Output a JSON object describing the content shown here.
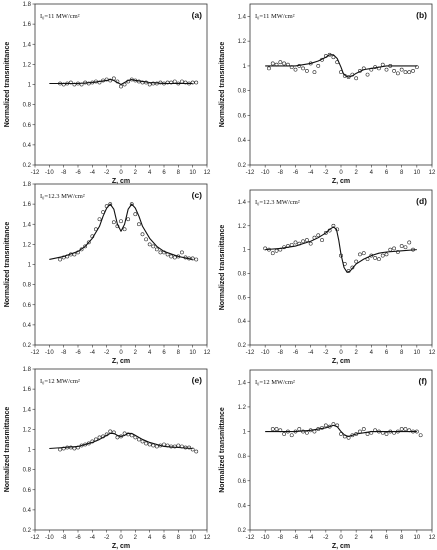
{
  "chart_data": [
    {
      "type": "scatter",
      "panel_label": "(a)",
      "intensity": "I₀=11 MW/cm²",
      "xlabel": "Z, cm",
      "ylabel": "Normalized transmittance",
      "xlim": [
        -12,
        12
      ],
      "ylim": [
        0.2,
        1.8
      ],
      "xticks": [
        -12,
        -10,
        -8,
        -6,
        -4,
        -2,
        0,
        2,
        4,
        6,
        8,
        10,
        12
      ],
      "yticks": [
        0.2,
        0.4,
        0.6,
        0.8,
        1,
        1.2,
        1.4,
        1.6,
        1.8
      ],
      "xticklabels": [
        "-12",
        "-10",
        "-8",
        "-6",
        "-4",
        "-2",
        "0",
        "2",
        "4",
        "6",
        "8",
        "10",
        "12"
      ],
      "yticklabels": [
        "0.2",
        "0.4",
        "0.6",
        "0.8",
        "1",
        "1.2",
        "1.4",
        "1.6",
        "1.8"
      ],
      "series": [
        {
          "kind": "points",
          "x": [
            -8.5,
            -8,
            -7.5,
            -7,
            -6.5,
            -6,
            -5.5,
            -5,
            -4.5,
            -4,
            -3.5,
            -3,
            -2.5,
            -2,
            -1.5,
            -1,
            -0.5,
            0,
            0.5,
            1,
            1.5,
            2,
            2.5,
            3,
            3.5,
            4,
            4.5,
            5,
            5.5,
            6,
            6.5,
            7,
            7.5,
            8,
            8.5,
            9,
            9.5,
            10,
            10.5
          ],
          "y": [
            1.01,
            1.0,
            1.01,
            1.02,
            1.0,
            1.01,
            1.0,
            1.02,
            1.01,
            1.02,
            1.03,
            1.02,
            1.04,
            1.05,
            1.04,
            1.06,
            1.03,
            0.98,
            1.0,
            1.03,
            1.05,
            1.04,
            1.03,
            1.02,
            1.02,
            1.0,
            1.01,
            1.01,
            1.02,
            1.01,
            1.02,
            1.02,
            1.03,
            1.01,
            1.03,
            1.02,
            1.01,
            1.02,
            1.02
          ]
        },
        {
          "kind": "line",
          "x": [
            -10,
            -8,
            -6,
            -4,
            -3,
            -2,
            -1.5,
            -1,
            -0.5,
            0,
            0.5,
            1,
            1.5,
            2,
            3,
            4,
            6,
            8,
            10
          ],
          "y": [
            1.01,
            1.01,
            1.01,
            1.02,
            1.03,
            1.04,
            1.05,
            1.04,
            1.02,
            1.0,
            1.02,
            1.04,
            1.05,
            1.04,
            1.03,
            1.02,
            1.01,
            1.01,
            1.01
          ]
        }
      ]
    },
    {
      "type": "scatter",
      "panel_label": "(b)",
      "intensity": "I₀=11 MW/cm²",
      "xlabel": "Z, cm",
      "ylabel": "Normalized transmittance",
      "xlim": [
        -12,
        12
      ],
      "ylim": [
        0.2,
        1.5
      ],
      "xticks": [
        -12,
        -10,
        -8,
        -6,
        -4,
        -2,
        0,
        2,
        4,
        6,
        8,
        10,
        12
      ],
      "yticks": [
        0.2,
        0.4,
        0.6,
        0.8,
        1,
        1.2,
        1.4
      ],
      "xticklabels": [
        "-12",
        "-10",
        "-8",
        "-6",
        "-4",
        "-2",
        "0",
        "2",
        "4",
        "6",
        "8",
        "10",
        "12"
      ],
      "yticklabels": [
        "0.2",
        "0.4",
        "0.6",
        "0.8",
        "1",
        "1.2",
        "1.4"
      ],
      "series": [
        {
          "kind": "points",
          "x": [
            -9.5,
            -9,
            -8.5,
            -8,
            -7.5,
            -7,
            -6.5,
            -6,
            -5.5,
            -5,
            -4.5,
            -4,
            -3.5,
            -3,
            -2.5,
            -2,
            -1.5,
            -1,
            -0.5,
            0,
            0.5,
            1,
            1.5,
            2,
            2.5,
            3,
            3.5,
            4,
            4.5,
            5,
            5.5,
            6,
            6.5,
            7,
            7.5,
            8,
            8.5,
            9,
            9.5,
            10
          ],
          "y": [
            0.98,
            1.02,
            1.01,
            1.03,
            1.02,
            1.01,
            0.99,
            0.97,
            1.0,
            0.98,
            0.96,
            1.02,
            0.95,
            1.0,
            1.05,
            1.08,
            1.09,
            1.07,
            1.03,
            0.95,
            0.92,
            0.91,
            0.93,
            0.9,
            0.96,
            0.98,
            0.93,
            0.97,
            0.99,
            0.98,
            1.01,
            0.97,
            1.0,
            0.96,
            0.94,
            0.97,
            0.95,
            0.95,
            0.96,
            0.99
          ]
        },
        {
          "kind": "line",
          "x": [
            -10,
            -8,
            -6,
            -5,
            -4,
            -3,
            -2,
            -1.5,
            -1,
            -0.5,
            0,
            0.3,
            0.6,
            1,
            1.5,
            2,
            3,
            4,
            5,
            6,
            8,
            10
          ],
          "y": [
            1.0,
            1.0,
            1.0,
            1.01,
            1.02,
            1.04,
            1.07,
            1.09,
            1.09,
            1.06,
            0.99,
            0.94,
            0.92,
            0.91,
            0.92,
            0.94,
            0.97,
            0.98,
            0.99,
            1.0,
            1.0,
            1.0
          ]
        }
      ]
    },
    {
      "type": "scatter",
      "panel_label": "(c)",
      "intensity": "I₀=12.3 MW/cm²",
      "xlabel": "Z, cm",
      "ylabel": "Normalized transmittance",
      "xlim": [
        -12,
        12
      ],
      "ylim": [
        0.2,
        1.8
      ],
      "xticks": [
        -12,
        -10,
        -8,
        -6,
        -4,
        -2,
        0,
        2,
        4,
        6,
        8,
        10,
        12
      ],
      "yticks": [
        0.2,
        0.4,
        0.6,
        0.8,
        1,
        1.2,
        1.4,
        1.6,
        1.8
      ],
      "xticklabels": [
        "-12",
        "-10",
        "-8",
        "-6",
        "-4",
        "-2",
        "0",
        "2",
        "4",
        "6",
        "8",
        "10",
        "12"
      ],
      "yticklabels": [
        "0.2",
        "0.4",
        "0.6",
        "0.8",
        "1",
        "1.2",
        "1.4",
        "1.6",
        "1.8"
      ],
      "series": [
        {
          "kind": "points",
          "x": [
            -8.5,
            -8,
            -7.5,
            -7,
            -6.5,
            -6,
            -5.5,
            -5,
            -4.5,
            -4,
            -3.5,
            -3,
            -2.5,
            -2,
            -1.5,
            -1,
            -0.5,
            0,
            0.5,
            1,
            1.5,
            2,
            2.5,
            3,
            3.5,
            4,
            4.5,
            5,
            5.5,
            6,
            6.5,
            7,
            7.5,
            8,
            8.5,
            9,
            9.5,
            10,
            10.5
          ],
          "y": [
            1.05,
            1.07,
            1.08,
            1.1,
            1.1,
            1.12,
            1.15,
            1.18,
            1.22,
            1.28,
            1.35,
            1.45,
            1.52,
            1.58,
            1.6,
            1.42,
            1.38,
            1.43,
            1.35,
            1.45,
            1.6,
            1.5,
            1.4,
            1.3,
            1.25,
            1.2,
            1.18,
            1.15,
            1.12,
            1.12,
            1.1,
            1.08,
            1.07,
            1.08,
            1.12,
            1.07,
            1.06,
            1.06,
            1.05
          ]
        },
        {
          "kind": "line",
          "x": [
            -10,
            -8,
            -6,
            -5,
            -4,
            -3,
            -2.5,
            -2,
            -1.5,
            -1,
            -0.5,
            0,
            0.5,
            1,
            1.5,
            2,
            2.5,
            3,
            4,
            5,
            6,
            8,
            10
          ],
          "y": [
            1.05,
            1.08,
            1.13,
            1.18,
            1.26,
            1.38,
            1.48,
            1.56,
            1.6,
            1.55,
            1.4,
            1.33,
            1.4,
            1.55,
            1.6,
            1.56,
            1.48,
            1.38,
            1.26,
            1.18,
            1.13,
            1.08,
            1.05
          ]
        }
      ]
    },
    {
      "type": "scatter",
      "panel_label": "(d)",
      "intensity": "I₀=12.3 MW/cm²",
      "xlabel": "Z, cm",
      "ylabel": "Normalized transmittance",
      "xlim": [
        -12,
        12
      ],
      "ylim": [
        0.2,
        1.5
      ],
      "xticks": [
        -12,
        -10,
        -8,
        -6,
        -4,
        -2,
        0,
        2,
        4,
        6,
        8,
        10,
        12
      ],
      "yticks": [
        0.2,
        0.4,
        0.6,
        0.8,
        1,
        1.2,
        1.4
      ],
      "xticklabels": [
        "-12",
        "-10",
        "-8",
        "-6",
        "-4",
        "-2",
        "0",
        "2",
        "4",
        "6",
        "8",
        "10",
        "12"
      ],
      "yticklabels": [
        "0.2",
        "0.4",
        "0.6",
        "0.8",
        "1",
        "1.2",
        "1.4"
      ],
      "series": [
        {
          "kind": "points",
          "x": [
            -10,
            -9.5,
            -9,
            -8.5,
            -8,
            -7.5,
            -7,
            -6.5,
            -6,
            -5.5,
            -5,
            -4.5,
            -4,
            -3.5,
            -3,
            -2.5,
            -2,
            -1.5,
            -1,
            -0.5,
            0,
            0.5,
            1,
            1.5,
            2,
            2.5,
            3,
            3.5,
            4,
            4.5,
            5,
            5.5,
            6,
            6.5,
            7,
            7.5,
            8,
            8.5,
            9,
            9.5
          ],
          "y": [
            1.01,
            1.0,
            0.97,
            0.99,
            1.0,
            1.02,
            1.03,
            1.04,
            1.06,
            1.05,
            1.07,
            1.08,
            1.05,
            1.1,
            1.12,
            1.08,
            1.14,
            1.16,
            1.2,
            1.17,
            0.95,
            0.88,
            0.82,
            0.85,
            0.9,
            0.96,
            0.97,
            0.92,
            0.95,
            0.93,
            0.92,
            0.95,
            0.96,
            1.0,
            1.01,
            0.98,
            1.03,
            1.02,
            1.06,
            1.0
          ]
        },
        {
          "kind": "line",
          "x": [
            -10,
            -8,
            -6,
            -5,
            -4,
            -3,
            -2,
            -1.5,
            -1,
            -0.6,
            -0.3,
            0,
            0.4,
            0.8,
            1.2,
            1.6,
            2,
            3,
            4,
            5,
            6,
            8,
            10
          ],
          "y": [
            1.0,
            1.01,
            1.03,
            1.05,
            1.07,
            1.1,
            1.14,
            1.17,
            1.19,
            1.17,
            1.08,
            0.96,
            0.85,
            0.81,
            0.82,
            0.85,
            0.88,
            0.92,
            0.95,
            0.97,
            0.98,
            0.99,
            1.0
          ]
        }
      ]
    },
    {
      "type": "scatter",
      "panel_label": "(e)",
      "intensity": "I₀=12 MW/cm²",
      "xlabel": "Z, cm",
      "ylabel": "Normalized transmittance",
      "xlim": [
        -12,
        12
      ],
      "ylim": [
        0.2,
        1.8
      ],
      "xticks": [
        -12,
        -10,
        -8,
        -6,
        -4,
        -2,
        0,
        2,
        4,
        6,
        8,
        10,
        12
      ],
      "yticks": [
        0.2,
        0.4,
        0.6,
        0.8,
        1,
        1.2,
        1.4,
        1.6,
        1.8
      ],
      "xticklabels": [
        "-12",
        "-10",
        "-8",
        "-6",
        "-4",
        "-2",
        "0",
        "2",
        "4",
        "6",
        "8",
        "10",
        "12"
      ],
      "yticklabels": [
        "0.2",
        "0.4",
        "0.6",
        "0.8",
        "1",
        "1.2",
        "1.4",
        "1.6",
        "1.8"
      ],
      "series": [
        {
          "kind": "points",
          "x": [
            -8.5,
            -8,
            -7.5,
            -7,
            -6.5,
            -6,
            -5.5,
            -5,
            -4.5,
            -4,
            -3.5,
            -3,
            -2.5,
            -2,
            -1.5,
            -1,
            -0.5,
            0,
            0.5,
            1,
            1.5,
            2,
            2.5,
            3,
            3.5,
            4,
            4.5,
            5,
            5.5,
            6,
            6.5,
            7,
            7.5,
            8,
            8.5,
            9,
            9.5,
            10,
            10.5
          ],
          "y": [
            1.0,
            1.01,
            1.02,
            1.02,
            1.01,
            1.02,
            1.04,
            1.05,
            1.06,
            1.08,
            1.1,
            1.12,
            1.13,
            1.15,
            1.18,
            1.17,
            1.12,
            1.13,
            1.16,
            1.15,
            1.14,
            1.12,
            1.1,
            1.08,
            1.06,
            1.05,
            1.04,
            1.03,
            1.04,
            1.05,
            1.04,
            1.03,
            1.03,
            1.04,
            1.03,
            1.02,
            1.02,
            1.0,
            0.98
          ]
        },
        {
          "kind": "line",
          "x": [
            -10,
            -8,
            -6,
            -4,
            -3,
            -2,
            -1.5,
            -1,
            -0.5,
            0,
            0.5,
            1,
            1.5,
            2,
            3,
            4,
            6,
            8,
            10
          ],
          "y": [
            1.01,
            1.02,
            1.03,
            1.07,
            1.1,
            1.14,
            1.16,
            1.16,
            1.14,
            1.13,
            1.14,
            1.16,
            1.16,
            1.14,
            1.1,
            1.07,
            1.03,
            1.02,
            1.01
          ]
        }
      ]
    },
    {
      "type": "scatter",
      "panel_label": "(f)",
      "intensity": "I₀=12 MW/cm²",
      "xlabel": "Z, cm",
      "ylabel": "Normalized transmittance",
      "xlim": [
        -12,
        12
      ],
      "ylim": [
        0.2,
        1.5
      ],
      "xticks": [
        -12,
        -10,
        -8,
        -6,
        -4,
        -2,
        0,
        2,
        4,
        6,
        8,
        10,
        12
      ],
      "yticks": [
        0.2,
        0.4,
        0.6,
        0.8,
        1,
        1.2,
        1.4
      ],
      "xticklabels": [
        "-12",
        "-10",
        "-8",
        "-6",
        "-4",
        "-2",
        "0",
        "2",
        "4",
        "6",
        "8",
        "10",
        "12"
      ],
      "yticklabels": [
        "0.2",
        "0.4",
        "0.6",
        "0.8",
        "1",
        "1.2",
        "1.4"
      ],
      "series": [
        {
          "kind": "points",
          "x": [
            -9,
            -8.5,
            -8,
            -7.5,
            -7,
            -6.5,
            -6,
            -5.5,
            -5,
            -4.5,
            -4,
            -3.5,
            -3,
            -2.5,
            -2,
            -1.5,
            -1,
            -0.5,
            0,
            0.5,
            1,
            1.5,
            2,
            2.5,
            3,
            3.5,
            4,
            4.5,
            5,
            5.5,
            6,
            6.5,
            7,
            7.5,
            8,
            8.5,
            9,
            9.5,
            10,
            10.5
          ],
          "y": [
            1.02,
            1.02,
            1.01,
            0.98,
            1.0,
            0.97,
            1.0,
            1.02,
            1.0,
            0.99,
            1.01,
            1.0,
            1.02,
            1.03,
            1.05,
            1.04,
            1.06,
            1.05,
            0.98,
            0.96,
            0.95,
            0.97,
            0.98,
            1.0,
            1.02,
            0.98,
            0.99,
            1.01,
            1.0,
            0.99,
            0.98,
            1.0,
            0.99,
            1.0,
            1.02,
            1.02,
            1.01,
            1.0,
            1.0,
            0.97
          ]
        },
        {
          "kind": "line",
          "x": [
            -10,
            -8,
            -6,
            -4,
            -3,
            -2,
            -1.5,
            -1,
            -0.5,
            0,
            0.5,
            1,
            1.5,
            2,
            3,
            4,
            6,
            8,
            10
          ],
          "y": [
            1.0,
            1.0,
            1.0,
            1.01,
            1.02,
            1.03,
            1.04,
            1.05,
            1.04,
            1.0,
            0.97,
            0.96,
            0.97,
            0.98,
            0.99,
            1.0,
            1.0,
            1.0,
            1.0
          ]
        }
      ]
    }
  ]
}
